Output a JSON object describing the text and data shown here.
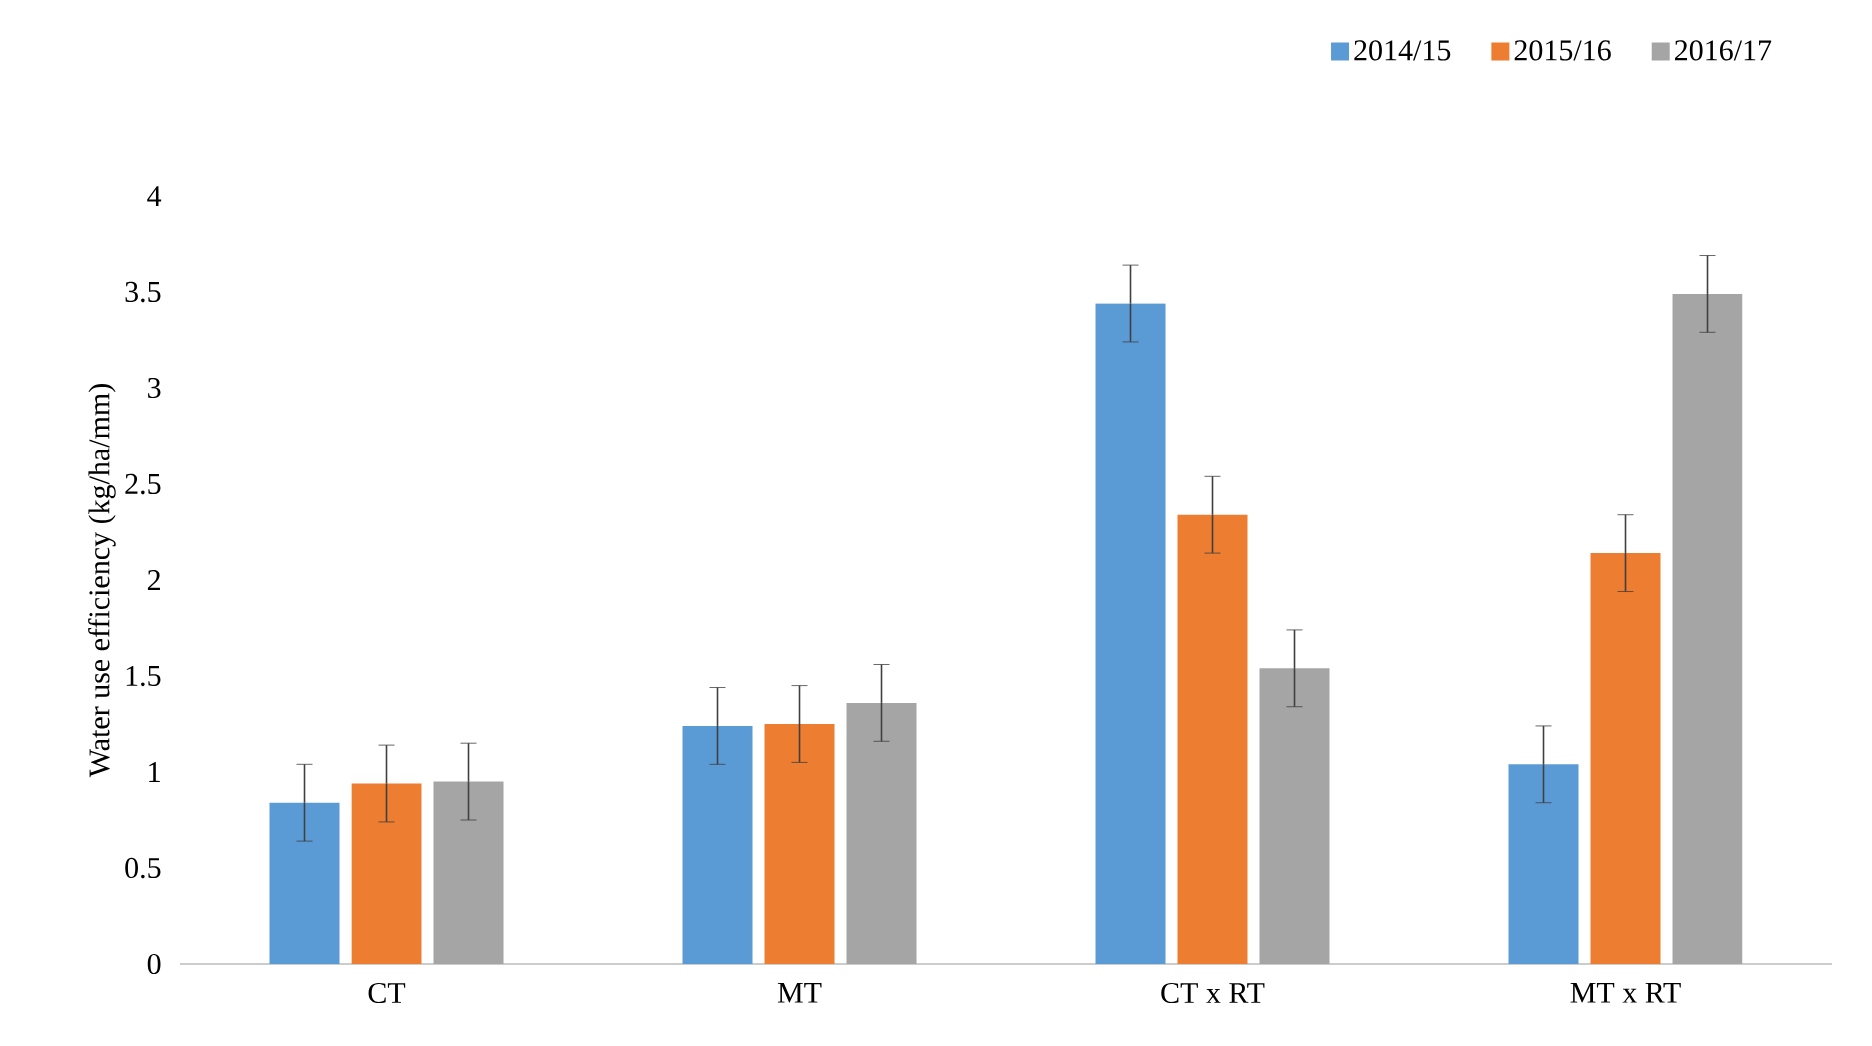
{
  "chart_data": {
    "type": "bar",
    "ylabel": "Water use efficiency  (kg/ha/mm)",
    "categories": [
      "CT",
      "MT",
      "CT x RT",
      "MT x RT"
    ],
    "series": [
      {
        "name": "2014/15",
        "color": "#5b9bd5",
        "values": [
          0.84,
          1.24,
          3.44,
          1.04
        ],
        "errors": [
          0.2,
          0.2,
          0.2,
          0.2
        ]
      },
      {
        "name": "2015/16",
        "color": "#ed7d31",
        "values": [
          0.94,
          1.25,
          2.34,
          2.14
        ],
        "errors": [
          0.2,
          0.2,
          0.2,
          0.2
        ]
      },
      {
        "name": "2016/17",
        "color": "#a5a5a5",
        "values": [
          0.95,
          1.36,
          1.54,
          3.49
        ],
        "errors": [
          0.2,
          0.2,
          0.2,
          0.2
        ]
      }
    ],
    "ylim": [
      0,
      4
    ],
    "yticks": [
      0,
      0.5,
      1,
      1.5,
      2,
      2.5,
      3,
      3.5,
      4
    ],
    "legend": "top right"
  }
}
